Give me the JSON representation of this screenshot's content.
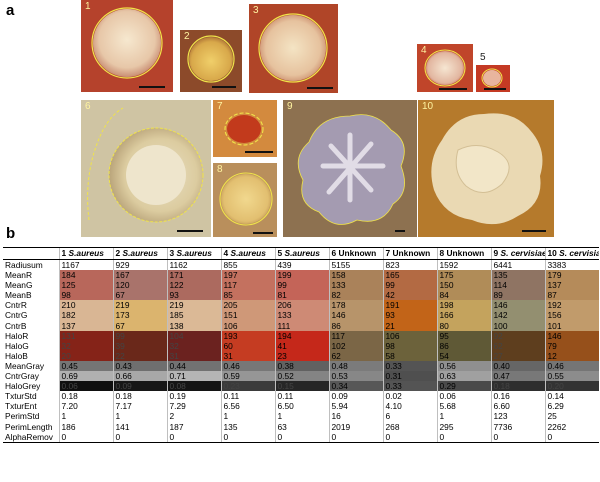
{
  "panel_a": {
    "label": "a",
    "tiles": [
      "1",
      "2",
      "3",
      "4",
      "5",
      "6",
      "7",
      "8",
      "9",
      "10"
    ]
  },
  "panel_b": {
    "label": "b",
    "columns": [
      {
        "num": "1",
        "name": "S.aureus",
        "italic": true
      },
      {
        "num": "2",
        "name": "S.aureus",
        "italic": true
      },
      {
        "num": "3",
        "name": "S.aureus",
        "italic": true
      },
      {
        "num": "4",
        "name": "S.aureus",
        "italic": true
      },
      {
        "num": "5",
        "name": "S.aureus",
        "italic": true
      },
      {
        "num": "6",
        "name": "Unknown",
        "italic": false
      },
      {
        "num": "7",
        "name": "Unknown",
        "italic": false
      },
      {
        "num": "8",
        "name": "Unknown",
        "italic": false
      },
      {
        "num": "9",
        "name": "S. cervisiae",
        "italic": true
      },
      {
        "num": "10",
        "name": "S. cervisiae",
        "italic": true
      }
    ],
    "rows": [
      {
        "name": "Radiusum",
        "values": [
          "1167",
          "929",
          "1162",
          "855",
          "439",
          "5155",
          "823",
          "1592",
          "6441",
          "3383"
        ]
      },
      {
        "name": "MeanR",
        "values": [
          "184",
          "167",
          "171",
          "197",
          "199",
          "158",
          "165",
          "175",
          "135",
          "179"
        ]
      },
      {
        "name": "MeanG",
        "values": [
          "125",
          "120",
          "122",
          "117",
          "99",
          "133",
          "99",
          "150",
          "114",
          "137"
        ]
      },
      {
        "name": "MeanB",
        "values": [
          "98",
          "67",
          "93",
          "85",
          "81",
          "82",
          "42",
          "84",
          "89",
          "87"
        ]
      },
      {
        "name": "CntrR",
        "values": [
          "210",
          "219",
          "219",
          "205",
          "206",
          "178",
          "191",
          "198",
          "146",
          "192"
        ]
      },
      {
        "name": "CntrG",
        "values": [
          "182",
          "173",
          "185",
          "151",
          "133",
          "146",
          "93",
          "166",
          "142",
          "156"
        ]
      },
      {
        "name": "CntrB",
        "values": [
          "137",
          "67",
          "138",
          "106",
          "111",
          "86",
          "21",
          "80",
          "100",
          "101"
        ]
      },
      {
        "name": "HaloR",
        "values": [
          "131",
          "99",
          "104",
          "193",
          "194",
          "117",
          "106",
          "95",
          "92",
          "146"
        ]
      },
      {
        "name": "HaloG",
        "values": [
          "32",
          "39",
          "32",
          "60",
          "41",
          "102",
          "98",
          "86",
          "62",
          "79"
        ]
      },
      {
        "name": "HaloB",
        "values": [
          "20",
          "22",
          "31",
          "31",
          "23",
          "62",
          "58",
          "54",
          "27",
          "12"
        ]
      },
      {
        "name": "MeanGray",
        "values": [
          "0.45",
          "0.43",
          "0.44",
          "0.46",
          "0.38",
          "0.48",
          "0.33",
          "0.56",
          "0.40",
          "0.46"
        ]
      },
      {
        "name": "CntrGray",
        "values": [
          "0.69",
          "0.66",
          "0.71",
          "0.59",
          "0.52",
          "0.53",
          "0.31",
          "0.63",
          "0.47",
          "0.55"
        ]
      },
      {
        "name": "HaloGrey",
        "values": [
          "0.06",
          "0.09",
          "0.08",
          "0.23",
          "0.15",
          "0.34",
          "0.33",
          "0.29",
          "0.18",
          "0.20"
        ]
      },
      {
        "name": "TxturStd",
        "values": [
          "0.18",
          "0.18",
          "0.19",
          "0.11",
          "0.11",
          "0.09",
          "0.02",
          "0.06",
          "0.16",
          "0.14"
        ]
      },
      {
        "name": "TxturEnt",
        "values": [
          "7.20",
          "7.17",
          "7.29",
          "6.56",
          "6.50",
          "5.94",
          "4.10",
          "5.68",
          "6.60",
          "6.29"
        ]
      },
      {
        "name": "PerimStd",
        "values": [
          "1",
          "1",
          "2",
          "1",
          "1",
          "16",
          "6",
          "1",
          "123",
          "25"
        ]
      },
      {
        "name": "PerimLength",
        "values": [
          "186",
          "141",
          "187",
          "135",
          "63",
          "2019",
          "268",
          "295",
          "7736",
          "2262"
        ]
      },
      {
        "name": "AlphaRemov",
        "values": [
          "0",
          "0",
          "0",
          "0",
          "0",
          "0",
          "0",
          "0",
          "0",
          "0"
        ]
      }
    ],
    "row_colors": {
      "MeanR": [
        "#b8675b",
        "#a9736b",
        "#ac6a5f",
        "#c4715f",
        "#c46458",
        "#aa825a",
        "#b36a43",
        "#b08c58",
        "#8f7463",
        "#b58b5a"
      ],
      "MeanG": [
        "#b8675b",
        "#a9736b",
        "#ac6a5f",
        "#c4715f",
        "#c46458",
        "#aa825a",
        "#b36a43",
        "#b08c58",
        "#8f7463",
        "#b58b5a"
      ],
      "MeanB": [
        "#b8675b",
        "#a9736b",
        "#ac6a5f",
        "#c4715f",
        "#c46458",
        "#aa825a",
        "#b36a43",
        "#b08c58",
        "#8f7463",
        "#b58b5a"
      ],
      "CntrR": [
        "#d9b694",
        "#dbb46e",
        "#dbb996",
        "#cf9878",
        "#ce8a75",
        "#b7946a",
        "#c26418",
        "#c4a35d",
        "#938f70",
        "#c19b6b"
      ],
      "CntrG": [
        "#d9b694",
        "#dbb46e",
        "#dbb996",
        "#cf9878",
        "#ce8a75",
        "#b7946a",
        "#c26418",
        "#c4a35d",
        "#938f70",
        "#c19b6b"
      ],
      "CntrB": [
        "#d9b694",
        "#dbb46e",
        "#dbb996",
        "#cf9878",
        "#ce8a75",
        "#b7946a",
        "#c26418",
        "#c4a35d",
        "#938f70",
        "#c19b6b"
      ],
      "HaloR": [
        "#852318",
        "#6a281a",
        "#6b221f",
        "#c53c22",
        "#c5281a",
        "#7b6646",
        "#6c623b",
        "#5f5936",
        "#5e3e1e",
        "#96501b"
      ],
      "HaloG": [
        "#852318",
        "#6a281a",
        "#6b221f",
        "#c53c22",
        "#c5281a",
        "#7b6646",
        "#6c623b",
        "#5f5936",
        "#5e3e1e",
        "#96501b"
      ],
      "HaloB": [
        "#852318",
        "#6a281a",
        "#6b221f",
        "#c53c22",
        "#c5281a",
        "#7b6646",
        "#6c623b",
        "#5f5936",
        "#5e3e1e",
        "#96501b"
      ],
      "MeanGray": [
        "#757575",
        "#6f6f6f",
        "#727272",
        "#777777",
        "#616161",
        "#7b7b7b",
        "#545454",
        "#8f8f8f",
        "#666666",
        "#757575"
      ],
      "CntrGray": [
        "#b0b0b0",
        "#a8a8a8",
        "#b5b5b5",
        "#969696",
        "#848484",
        "#878787",
        "#4f4f4f",
        "#a0a0a0",
        "#787878",
        "#8c8c8c"
      ],
      "HaloGrey": [
        "#0f0f0f",
        "#171717",
        "#141414",
        "#3b3b3b",
        "#262626",
        "#575757",
        "#545454",
        "#4a4a4a",
        "#2e2e2e",
        "#333333"
      ]
    }
  }
}
